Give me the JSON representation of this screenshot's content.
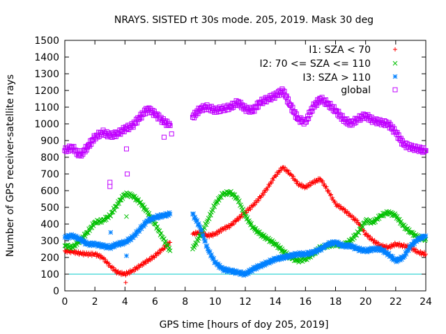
{
  "chart_data": {
    "type": "scatter",
    "title": "NRAYS. SISTED rt 30s mode. 205, 2019. Mask 30 deg",
    "xlabel": "GPS time [hours of doy 205, 2019]",
    "ylabel": "Number of GPS receiver-satellite rays",
    "xlim": [
      0,
      24
    ],
    "ylim": [
      0,
      1500
    ],
    "xticks": [
      0,
      2,
      4,
      6,
      8,
      10,
      12,
      14,
      16,
      18,
      20,
      22,
      24
    ],
    "yticks": [
      0,
      100,
      200,
      300,
      400,
      500,
      600,
      700,
      800,
      900,
      1000,
      1100,
      1200,
      1300,
      1400,
      1500
    ],
    "grid": false,
    "legend_position": "top-right",
    "reference_line": {
      "y": 100,
      "color": "#00c8c8"
    },
    "series": [
      {
        "name": "I1: SZA < 70",
        "marker": "+",
        "color": "#ff0000",
        "x": [
          0,
          0.5,
          1,
          1.5,
          2,
          2.5,
          3,
          3.5,
          4,
          4.5,
          5,
          5.5,
          6,
          6.5,
          7,
          8.5,
          9,
          9.5,
          10,
          10.5,
          11,
          11.5,
          12,
          12.5,
          13,
          13.5,
          14,
          14.5,
          15,
          15.5,
          16,
          16.5,
          17,
          17.5,
          18,
          18.5,
          19,
          19.5,
          20,
          20.5,
          21,
          21.5,
          22,
          22.5,
          23,
          23.5,
          24
        ],
        "y": [
          240,
          235,
          225,
          220,
          220,
          200,
          150,
          110,
          100,
          120,
          150,
          180,
          210,
          250,
          290,
          340,
          350,
          330,
          340,
          370,
          390,
          430,
          470,
          510,
          560,
          620,
          690,
          740,
          700,
          640,
          620,
          650,
          670,
          600,
          520,
          490,
          450,
          410,
          340,
          300,
          270,
          260,
          280,
          270,
          260,
          230,
          220
        ]
      },
      {
        "name": "I2: 70 <= SZA <= 110",
        "marker": "x",
        "color": "#00c000",
        "x": [
          0,
          0.5,
          1,
          1.5,
          2,
          2.5,
          3,
          3.5,
          4,
          4.5,
          5,
          5.5,
          6,
          6.5,
          7,
          8.5,
          9,
          9.5,
          10,
          10.5,
          11,
          11.5,
          12,
          12.5,
          13,
          13.5,
          14,
          14.5,
          15,
          15.5,
          16,
          16.5,
          17,
          17.5,
          18,
          18.5,
          19,
          19.5,
          20,
          20.5,
          21,
          21.5,
          22,
          22.5,
          23,
          23.5,
          24
        ],
        "y": [
          270,
          260,
          300,
          350,
          410,
          420,
          450,
          520,
          580,
          570,
          530,
          470,
          400,
          320,
          240,
          250,
          330,
          420,
          520,
          580,
          590,
          550,
          450,
          380,
          340,
          310,
          280,
          240,
          200,
          180,
          190,
          220,
          260,
          270,
          280,
          270,
          300,
          350,
          420,
          410,
          450,
          470,
          450,
          390,
          350,
          320,
          310
        ]
      },
      {
        "name": "I3: SZA > 110",
        "marker": "*",
        "color": "#0080ff",
        "x": [
          0,
          0.5,
          1,
          1.5,
          2,
          2.5,
          3,
          3.5,
          4,
          4.5,
          5,
          5.5,
          6,
          6.5,
          7,
          8.5,
          9,
          9.5,
          10,
          10.5,
          11,
          11.5,
          12,
          12.5,
          13,
          13.5,
          14,
          14.5,
          15,
          15.5,
          16,
          16.5,
          17,
          17.5,
          18,
          18.5,
          19,
          19.5,
          20,
          20.5,
          21,
          21.5,
          22,
          22.5,
          23,
          23.5,
          24
        ],
        "y": [
          320,
          330,
          310,
          280,
          280,
          270,
          260,
          280,
          290,
          320,
          370,
          420,
          440,
          450,
          460,
          460,
          380,
          250,
          170,
          130,
          120,
          110,
          100,
          130,
          150,
          170,
          190,
          200,
          210,
          220,
          220,
          230,
          250,
          280,
          290,
          270,
          270,
          250,
          240,
          250,
          250,
          220,
          180,
          200,
          270,
          310,
          330
        ]
      },
      {
        "name": "global",
        "marker": "square",
        "color": "#c000ff",
        "x": [
          0,
          0.5,
          1,
          1.5,
          2,
          2.5,
          3,
          3.5,
          4,
          4.5,
          5,
          5.5,
          6,
          6.5,
          7,
          8.5,
          9,
          9.5,
          10,
          10.5,
          11,
          11.5,
          12,
          12.5,
          13,
          13.5,
          14,
          14.5,
          15,
          15.5,
          16,
          16.5,
          17,
          17.5,
          18,
          18.5,
          19,
          19.5,
          20,
          20.5,
          21,
          21.5,
          22,
          22.5,
          23,
          23.5,
          24
        ],
        "y": [
          840,
          860,
          810,
          860,
          920,
          950,
          930,
          940,
          970,
          990,
          1040,
          1090,
          1060,
          1020,
          990,
          1040,
          1090,
          1100,
          1080,
          1090,
          1100,
          1130,
          1090,
          1080,
          1130,
          1150,
          1170,
          1200,
          1110,
          1030,
          1010,
          1100,
          1150,
          1120,
          1080,
          1030,
          1000,
          1030,
          1050,
          1020,
          1010,
          1000,
          950,
          880,
          860,
          850,
          840
        ]
      }
    ],
    "outliers": [
      {
        "series": "I1: SZA < 70",
        "x": 4.05,
        "y": 50
      },
      {
        "series": "I1: SZA < 70",
        "x": 3.9,
        "y": 100
      },
      {
        "series": "I2: 70 <= SZA <= 110",
        "x": 4.1,
        "y": 445
      },
      {
        "series": "I3: SZA > 110",
        "x": 3.05,
        "y": 350
      },
      {
        "series": "I3: SZA > 110",
        "x": 4.1,
        "y": 210
      },
      {
        "series": "global",
        "x": 4.1,
        "y": 850
      },
      {
        "series": "global",
        "x": 4.15,
        "y": 700
      },
      {
        "series": "global",
        "x": 3.0,
        "y": 650
      },
      {
        "series": "global",
        "x": 3.0,
        "y": 625
      },
      {
        "series": "global",
        "x": 6.6,
        "y": 920
      },
      {
        "series": "global",
        "x": 7.1,
        "y": 940
      }
    ]
  }
}
